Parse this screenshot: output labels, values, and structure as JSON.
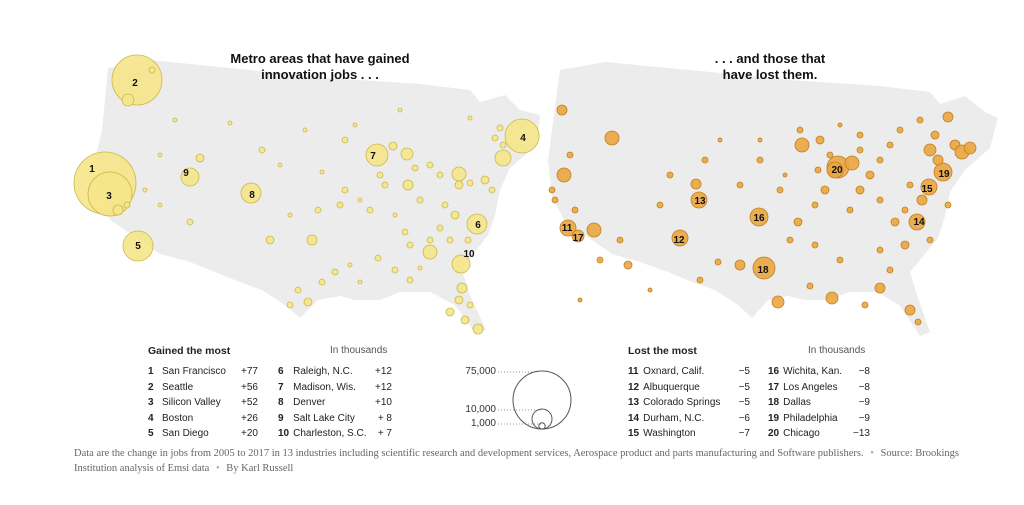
{
  "titles": {
    "left_line1": "Metro areas that have gained",
    "left_line2": "innovation jobs . . .",
    "right_line1": ". . . and those that",
    "right_line2": "have lost them."
  },
  "colors": {
    "land": "#ececec",
    "gain_fill": "#f6e58a",
    "gain_stroke": "#c9b84a",
    "loss_fill": "#eba640",
    "loss_stroke": "#c07f1c",
    "text": "#222222"
  },
  "gained_legend": {
    "heading": "Gained the most",
    "unit": "In thousands",
    "col1": [
      {
        "rank": "1",
        "name": "San Francisco",
        "value": "+77"
      },
      {
        "rank": "2",
        "name": "Seattle",
        "value": "+56"
      },
      {
        "rank": "3",
        "name": "Silicon Valley",
        "value": "+52"
      },
      {
        "rank": "4",
        "name": "Boston",
        "value": "+26"
      },
      {
        "rank": "5",
        "name": "San Diego",
        "value": "+20"
      }
    ],
    "col2": [
      {
        "rank": "6",
        "name": "Raleigh, N.C.",
        "value": "+12"
      },
      {
        "rank": "7",
        "name": "Madison, Wis.",
        "value": "+12"
      },
      {
        "rank": "8",
        "name": "Denver",
        "value": "+10"
      },
      {
        "rank": "9",
        "name": "Salt Lake City",
        "value": "+ 8"
      },
      {
        "rank": "10",
        "name": "Charleston, S.C.",
        "value": "+ 7"
      }
    ]
  },
  "lost_legend": {
    "heading": "Lost the most",
    "unit": "In thousands",
    "col1": [
      {
        "rank": "11",
        "name": "Oxnard, Calif.",
        "value": "−5"
      },
      {
        "rank": "12",
        "name": "Albuquerque",
        "value": "−5"
      },
      {
        "rank": "13",
        "name": "Colorado Springs",
        "value": "−5"
      },
      {
        "rank": "14",
        "name": "Durham, N.C.",
        "value": "−6"
      },
      {
        "rank": "15",
        "name": "Washington",
        "value": "−7"
      }
    ],
    "col2": [
      {
        "rank": "16",
        "name": "Wichita, Kan.",
        "value": "−8"
      },
      {
        "rank": "17",
        "name": "Los Angeles",
        "value": "−8"
      },
      {
        "rank": "18",
        "name": "Dallas",
        "value": "−9"
      },
      {
        "rank": "19",
        "name": "Philadelphia",
        "value": "−9"
      },
      {
        "rank": "20",
        "name": "Chicago",
        "value": "−13"
      }
    ]
  },
  "size_scale": {
    "labels": [
      "75,000",
      "10,000",
      "1,000"
    ],
    "values": [
      75000,
      10000,
      1000
    ]
  },
  "gain_map_labels": [
    "1",
    "2",
    "3",
    "4",
    "5",
    "6",
    "7",
    "8",
    "9",
    "10"
  ],
  "loss_map_labels": [
    "11",
    "12",
    "13",
    "14",
    "15",
    "16",
    "17",
    "18",
    "19",
    "20"
  ],
  "footnote": {
    "text": "Data are the change in jobs from 2005 to 2017 in 13 industries including scientific research and development services, Aerospace product and parts manufacturing and Software publishers.",
    "source": "Source: Brookings Institution analysis of Emsi data",
    "byline": "By Karl Russell"
  }
}
